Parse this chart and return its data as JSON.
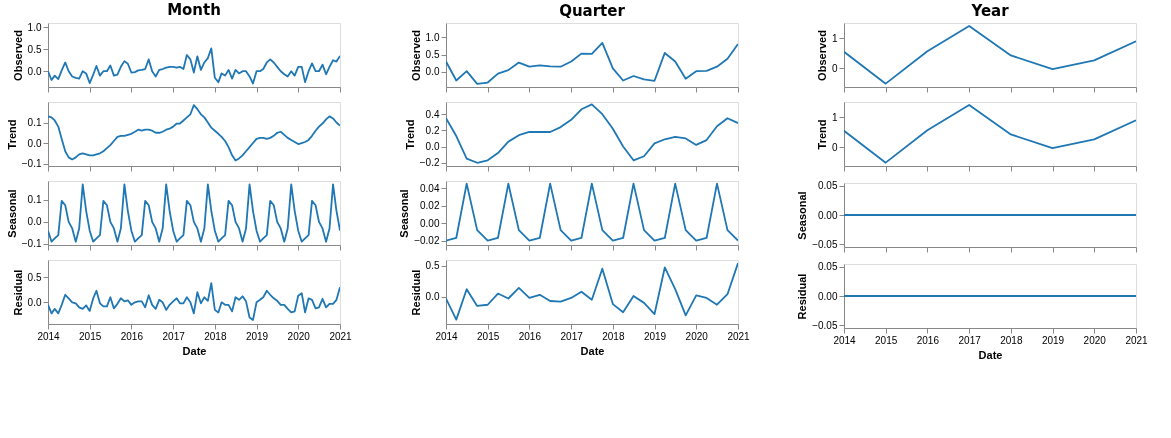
{
  "chart_data": [
    {
      "type": "line",
      "title": "Month",
      "ylabel": "Observed",
      "color": "#1f77b4",
      "tick_labels": "y",
      "x": [
        "2014-01",
        "2014-02",
        "2014-03",
        "2014-04",
        "2014-05",
        "2014-06",
        "2014-07",
        "2014-08",
        "2014-09",
        "2014-10",
        "2014-11",
        "2014-12",
        "2015-01",
        "2015-02",
        "2015-03",
        "2015-04",
        "2015-05",
        "2015-06",
        "2015-07",
        "2015-08",
        "2015-09",
        "2015-10",
        "2015-11",
        "2015-12",
        "2016-01",
        "2016-02",
        "2016-03",
        "2016-04",
        "2016-05",
        "2016-06",
        "2016-07",
        "2016-08",
        "2016-09",
        "2016-10",
        "2016-11",
        "2016-12",
        "2017-01",
        "2017-02",
        "2017-03",
        "2017-04",
        "2017-05",
        "2017-06",
        "2017-07",
        "2017-08",
        "2017-09",
        "2017-10",
        "2017-11",
        "2017-12",
        "2018-01",
        "2018-02",
        "2018-03",
        "2018-04",
        "2018-05",
        "2018-06",
        "2018-07",
        "2018-08",
        "2018-09",
        "2018-10",
        "2018-11",
        "2018-12",
        "2019-01",
        "2019-02",
        "2019-03",
        "2019-04",
        "2019-05",
        "2019-06",
        "2019-07",
        "2019-08",
        "2019-09",
        "2019-10",
        "2019-11",
        "2019-12",
        "2020-01",
        "2020-02",
        "2020-03",
        "2020-04",
        "2020-05",
        "2020-06",
        "2020-07",
        "2020-08",
        "2020-09",
        "2020-10",
        "2020-11",
        "2020-12",
        "2021-01"
      ],
      "values": [
        0.0,
        -0.2,
        -0.1,
        -0.18,
        0.02,
        0.2,
        0.0,
        -0.12,
        -0.15,
        -0.17,
        0.0,
        -0.05,
        -0.27,
        -0.08,
        0.12,
        -0.1,
        0.0,
        0.0,
        0.13,
        -0.1,
        -0.08,
        0.1,
        0.23,
        0.17,
        -0.03,
        -0.02,
        0.02,
        0.03,
        0.05,
        0.27,
        0.0,
        -0.12,
        0.03,
        0.05,
        0.08,
        0.1,
        0.1,
        0.08,
        0.1,
        0.05,
        0.37,
        0.27,
        -0.03,
        0.34,
        0.03,
        0.2,
        0.3,
        0.52,
        -0.15,
        -0.25,
        -0.05,
        -0.1,
        0.03,
        -0.17,
        0.03,
        -0.05,
        0.0,
        0.0,
        -0.12,
        -0.28,
        0.0,
        0.0,
        0.05,
        0.2,
        0.27,
        0.2,
        0.1,
        0.0,
        -0.07,
        -0.12,
        0.0,
        -0.1,
        0.1,
        0.1,
        -0.25,
        0.0,
        0.18,
        0.0,
        0.0,
        0.15,
        -0.07,
        0.1,
        0.25,
        0.22,
        0.35
      ],
      "xlim": [
        "2014-01",
        "2021-01"
      ],
      "xticks": [
        "2014",
        "2015",
        "2016",
        "2017",
        "2018",
        "2019",
        "2020",
        "2021"
      ],
      "ylim": [
        -0.36,
        1.1
      ],
      "yticks": [
        {
          "value": 0,
          "label": "0.0"
        },
        0.5,
        {
          "value": 1,
          "label": "1.0"
        }
      ]
    },
    {
      "type": "line",
      "title": "Quarter",
      "ylabel": "Observed",
      "color": "#1f77b4",
      "tick_labels": "y",
      "x": [
        "2014-01",
        "2014-04",
        "2014-07",
        "2014-10",
        "2015-01",
        "2015-04",
        "2015-07",
        "2015-10",
        "2016-01",
        "2016-04",
        "2016-07",
        "2016-10",
        "2017-01",
        "2017-04",
        "2017-07",
        "2017-10",
        "2018-01",
        "2018-04",
        "2018-07",
        "2018-10",
        "2019-01",
        "2019-04",
        "2019-07",
        "2019-10",
        "2020-01",
        "2020-04",
        "2020-07",
        "2020-10",
        "2021-01"
      ],
      "values": [
        0.3,
        -0.25,
        0.02,
        -0.35,
        -0.31,
        -0.05,
        0.05,
        0.27,
        0.15,
        0.19,
        0.16,
        0.15,
        0.3,
        0.53,
        0.52,
        0.84,
        0.1,
        -0.25,
        -0.12,
        -0.22,
        -0.26,
        0.55,
        0.3,
        -0.2,
        0.02,
        0.03,
        0.15,
        0.38,
        0.81
      ],
      "xlim": [
        "2014-01",
        "2021-01"
      ],
      "xticks": [
        "2014",
        "2015",
        "2016",
        "2017",
        "2018",
        "2019",
        "2020",
        "2021"
      ],
      "ylim": [
        -0.44,
        1.42
      ],
      "yticks": [
        {
          "value": 0,
          "label": "0.0"
        },
        0.5,
        {
          "value": 1,
          "label": "1.0"
        }
      ]
    },
    {
      "type": "line",
      "title": "Year",
      "ylabel": "Observed",
      "color": "#1f77b4",
      "tick_labels": "y",
      "x": [
        "2014",
        "2015",
        "2016",
        "2017",
        "2018",
        "2019",
        "2020",
        "2021"
      ],
      "values": [
        0.55,
        -0.5,
        0.57,
        1.4,
        0.43,
        -0.02,
        0.27,
        0.9
      ],
      "xlim": [
        "2014",
        "2021"
      ],
      "xticks": [
        "2014",
        "2015",
        "2016",
        "2017",
        "2018",
        "2019",
        "2020",
        "2021"
      ],
      "ylim": [
        -0.61,
        1.5
      ],
      "yticks": [
        0,
        1
      ]
    },
    {
      "type": "line",
      "ylabel": "Trend",
      "color": "#1f77b4",
      "tick_labels": "y",
      "x": [
        "2014-01",
        "2014-02",
        "2014-03",
        "2014-04",
        "2014-05",
        "2014-06",
        "2014-07",
        "2014-08",
        "2014-09",
        "2014-10",
        "2014-11",
        "2014-12",
        "2015-01",
        "2015-02",
        "2015-03",
        "2015-04",
        "2015-05",
        "2015-06",
        "2015-07",
        "2015-08",
        "2015-09",
        "2015-10",
        "2015-11",
        "2015-12",
        "2016-01",
        "2016-02",
        "2016-03",
        "2016-04",
        "2016-05",
        "2016-06",
        "2016-07",
        "2016-08",
        "2016-09",
        "2016-10",
        "2016-11",
        "2016-12",
        "2017-01",
        "2017-02",
        "2017-03",
        "2017-04",
        "2017-05",
        "2017-06",
        "2017-07",
        "2017-08",
        "2017-09",
        "2017-10",
        "2017-11",
        "2017-12",
        "2018-01",
        "2018-02",
        "2018-03",
        "2018-04",
        "2018-05",
        "2018-06",
        "2018-07",
        "2018-08",
        "2018-09",
        "2018-10",
        "2018-11",
        "2018-12",
        "2019-01",
        "2019-02",
        "2019-03",
        "2019-04",
        "2019-05",
        "2019-06",
        "2019-07",
        "2019-08",
        "2019-09",
        "2019-10",
        "2019-11",
        "2019-12",
        "2020-01",
        "2020-02",
        "2020-03",
        "2020-04",
        "2020-05",
        "2020-06",
        "2020-07",
        "2020-08",
        "2020-09",
        "2020-10",
        "2020-11",
        "2020-12",
        "2021-01"
      ],
      "values": [
        0.13,
        0.125,
        0.11,
        0.08,
        0.02,
        -0.04,
        -0.07,
        -0.08,
        -0.07,
        -0.055,
        -0.05,
        -0.055,
        -0.06,
        -0.06,
        -0.055,
        -0.05,
        -0.04,
        -0.025,
        -0.01,
        0.01,
        0.03,
        0.035,
        0.035,
        0.04,
        0.045,
        0.055,
        0.065,
        0.06,
        0.065,
        0.065,
        0.06,
        0.05,
        0.05,
        0.055,
        0.065,
        0.07,
        0.08,
        0.095,
        0.095,
        0.11,
        0.125,
        0.14,
        0.185,
        0.165,
        0.14,
        0.125,
        0.1,
        0.075,
        0.06,
        0.045,
        0.03,
        0.01,
        -0.02,
        -0.06,
        -0.085,
        -0.075,
        -0.06,
        -0.04,
        -0.02,
        0.0,
        0.02,
        0.025,
        0.025,
        0.02,
        0.025,
        0.035,
        0.05,
        0.055,
        0.04,
        0.025,
        0.015,
        0.005,
        -0.005,
        0.0,
        0.005,
        0.015,
        0.035,
        0.06,
        0.08,
        0.095,
        0.115,
        0.13,
        0.12,
        0.1,
        0.085
      ],
      "xlim": [
        "2014-01",
        "2021-01"
      ],
      "xticks": [
        "2014",
        "2015",
        "2016",
        "2017",
        "2018",
        "2019",
        "2020",
        "2021"
      ],
      "ylim": [
        -0.112,
        0.2
      ],
      "yticks": [
        {
          "value": -0.1,
          "label": "−0.1"
        },
        {
          "value": 0,
          "label": "0.0"
        },
        0.1
      ]
    },
    {
      "type": "line",
      "ylabel": "Trend",
      "color": "#1f77b4",
      "tick_labels": "y",
      "x": [
        "2014-01",
        "2014-04",
        "2014-07",
        "2014-10",
        "2015-01",
        "2015-04",
        "2015-07",
        "2015-10",
        "2016-01",
        "2016-04",
        "2016-07",
        "2016-10",
        "2017-01",
        "2017-04",
        "2017-07",
        "2017-10",
        "2018-01",
        "2018-04",
        "2018-07",
        "2018-10",
        "2019-01",
        "2019-04",
        "2019-07",
        "2019-10",
        "2020-01",
        "2020-04",
        "2020-07",
        "2020-10",
        "2021-01"
      ],
      "values": [
        0.35,
        0.13,
        -0.15,
        -0.2,
        -0.17,
        -0.08,
        0.06,
        0.14,
        0.18,
        0.18,
        0.18,
        0.24,
        0.33,
        0.46,
        0.52,
        0.4,
        0.22,
        0.0,
        -0.17,
        -0.12,
        0.04,
        0.09,
        0.12,
        0.1,
        0.02,
        0.08,
        0.25,
        0.35,
        0.29
      ],
      "xlim": [
        "2014-01",
        "2021-01"
      ],
      "xticks": [
        "2014",
        "2015",
        "2016",
        "2017",
        "2018",
        "2019",
        "2020",
        "2021"
      ],
      "ylim": [
        -0.24,
        0.55
      ],
      "yticks": [
        {
          "value": -0.2,
          "label": "−0.2"
        },
        {
          "value": 0,
          "label": "0.0"
        },
        0.2,
        0.4
      ]
    },
    {
      "type": "line",
      "ylabel": "Trend",
      "color": "#1f77b4",
      "tick_labels": "y",
      "x": [
        "2014",
        "2015",
        "2016",
        "2017",
        "2018",
        "2019",
        "2020",
        "2021"
      ],
      "values": [
        0.55,
        -0.5,
        0.57,
        1.4,
        0.43,
        -0.02,
        0.27,
        0.9
      ],
      "xlim": [
        "2014",
        "2021"
      ],
      "xticks": [
        "2014",
        "2015",
        "2016",
        "2017",
        "2018",
        "2019",
        "2020",
        "2021"
      ],
      "ylim": [
        -0.61,
        1.5
      ],
      "yticks": [
        0,
        1
      ]
    },
    {
      "type": "line",
      "ylabel": "Seasonal",
      "color": "#1f77b4",
      "tick_labels": "y",
      "x": [
        "2014-01",
        "2014-02",
        "2014-03",
        "2014-04",
        "2014-05",
        "2014-06",
        "2014-07",
        "2014-08",
        "2014-09",
        "2014-10",
        "2014-11",
        "2014-12",
        "2015-01",
        "2015-02",
        "2015-03",
        "2015-04",
        "2015-05",
        "2015-06",
        "2015-07",
        "2015-08",
        "2015-09",
        "2015-10",
        "2015-11",
        "2015-12",
        "2016-01",
        "2016-02",
        "2016-03",
        "2016-04",
        "2016-05",
        "2016-06",
        "2016-07",
        "2016-08",
        "2016-09",
        "2016-10",
        "2016-11",
        "2016-12",
        "2017-01",
        "2017-02",
        "2017-03",
        "2017-04",
        "2017-05",
        "2017-06",
        "2017-07",
        "2017-08",
        "2017-09",
        "2017-10",
        "2017-11",
        "2017-12",
        "2018-01",
        "2018-02",
        "2018-03",
        "2018-04",
        "2018-05",
        "2018-06",
        "2018-07",
        "2018-08",
        "2018-09",
        "2018-10",
        "2018-11",
        "2018-12",
        "2019-01",
        "2019-02",
        "2019-03",
        "2019-04",
        "2019-05",
        "2019-06",
        "2019-07",
        "2019-08",
        "2019-09",
        "2019-10",
        "2019-11",
        "2019-12",
        "2020-01",
        "2020-02",
        "2020-03",
        "2020-04",
        "2020-05",
        "2020-06",
        "2020-07",
        "2020-08",
        "2020-09",
        "2020-10",
        "2020-11",
        "2020-12",
        "2021-01"
      ],
      "values": [
        -0.04,
        -0.09,
        -0.075,
        -0.06,
        0.095,
        0.075,
        0.0,
        -0.03,
        -0.09,
        -0.03,
        0.17,
        0.05,
        -0.04,
        -0.09,
        -0.075,
        -0.06,
        0.095,
        0.075,
        0.0,
        -0.03,
        -0.09,
        -0.03,
        0.17,
        0.05,
        -0.04,
        -0.09,
        -0.075,
        -0.06,
        0.095,
        0.075,
        0.0,
        -0.03,
        -0.09,
        -0.03,
        0.17,
        0.05,
        -0.04,
        -0.09,
        -0.075,
        -0.06,
        0.095,
        0.075,
        0.0,
        -0.03,
        -0.09,
        -0.03,
        0.17,
        0.05,
        -0.04,
        -0.09,
        -0.075,
        -0.06,
        0.095,
        0.075,
        0.0,
        -0.03,
        -0.09,
        -0.03,
        0.17,
        0.05,
        -0.04,
        -0.09,
        -0.075,
        -0.06,
        0.095,
        0.075,
        0.0,
        -0.03,
        -0.09,
        -0.03,
        0.17,
        0.05,
        -0.04,
        -0.09,
        -0.075,
        -0.06,
        0.095,
        0.075,
        0.0,
        -0.03,
        -0.09,
        -0.03,
        0.17,
        0.05,
        -0.04
      ],
      "xlim": [
        "2014-01",
        "2021-01"
      ],
      "xticks": [
        "2014",
        "2015",
        "2016",
        "2017",
        "2018",
        "2019",
        "2020",
        "2021"
      ],
      "ylim": [
        -0.105,
        0.185
      ],
      "yticks": [
        {
          "value": -0.1,
          "label": "−0.1"
        },
        {
          "value": 0,
          "label": "0.0"
        },
        0.1
      ]
    },
    {
      "type": "line",
      "ylabel": "Seasonal",
      "color": "#1f77b4",
      "tick_labels": "y",
      "x": [
        "2014-01",
        "2014-04",
        "2014-07",
        "2014-10",
        "2015-01",
        "2015-04",
        "2015-07",
        "2015-10",
        "2016-01",
        "2016-04",
        "2016-07",
        "2016-10",
        "2017-01",
        "2017-04",
        "2017-07",
        "2017-10",
        "2018-01",
        "2018-04",
        "2018-07",
        "2018-10",
        "2019-01",
        "2019-04",
        "2019-07",
        "2019-10",
        "2020-01",
        "2020-04",
        "2020-07",
        "2020-10",
        "2021-01"
      ],
      "values": [
        -0.02,
        -0.017,
        0.045,
        -0.008,
        -0.02,
        -0.017,
        0.045,
        -0.008,
        -0.02,
        -0.017,
        0.045,
        -0.008,
        -0.02,
        -0.017,
        0.045,
        -0.008,
        -0.02,
        -0.017,
        0.045,
        -0.008,
        -0.02,
        -0.017,
        0.045,
        -0.008,
        -0.02,
        -0.017,
        0.045,
        -0.008,
        -0.02
      ],
      "xlim": [
        "2014-01",
        "2021-01"
      ],
      "xticks": [
        "2014",
        "2015",
        "2016",
        "2017",
        "2018",
        "2019",
        "2020",
        "2021"
      ],
      "ylim": [
        -0.025,
        0.048
      ],
      "yticks": [
        {
          "value": -0.02,
          "label": "−0.02"
        },
        {
          "value": 0,
          "label": "0.00"
        },
        0.02,
        0.04
      ]
    },
    {
      "type": "line",
      "ylabel": "Seasonal",
      "color": "#1f77b4",
      "tick_labels": "y",
      "x": [
        "2014",
        "2015",
        "2016",
        "2017",
        "2018",
        "2019",
        "2020",
        "2021"
      ],
      "values": [
        0,
        0,
        0,
        0,
        0,
        0,
        0,
        0
      ],
      "xlim": [
        "2014",
        "2021"
      ],
      "xticks": [
        "2014",
        "2015",
        "2016",
        "2017",
        "2018",
        "2019",
        "2020",
        "2021"
      ],
      "ylim": [
        -0.055,
        0.055
      ],
      "yticks": [
        {
          "value": -0.05,
          "label": "−0.05"
        },
        {
          "value": 0,
          "label": "0.00"
        },
        0.05
      ]
    },
    {
      "type": "line",
      "ylabel": "Residual",
      "xlabel": "Date",
      "color": "#1f77b4",
      "x": [
        "2014-01",
        "2014-02",
        "2014-03",
        "2014-04",
        "2014-05",
        "2014-06",
        "2014-07",
        "2014-08",
        "2014-09",
        "2014-10",
        "2014-11",
        "2014-12",
        "2015-01",
        "2015-02",
        "2015-03",
        "2015-04",
        "2015-05",
        "2015-06",
        "2015-07",
        "2015-08",
        "2015-09",
        "2015-10",
        "2015-11",
        "2015-12",
        "2016-01",
        "2016-02",
        "2016-03",
        "2016-04",
        "2016-05",
        "2016-06",
        "2016-07",
        "2016-08",
        "2016-09",
        "2016-10",
        "2016-11",
        "2016-12",
        "2017-01",
        "2017-02",
        "2017-03",
        "2017-04",
        "2017-05",
        "2017-06",
        "2017-07",
        "2017-08",
        "2017-09",
        "2017-10",
        "2017-11",
        "2017-12",
        "2018-01",
        "2018-02",
        "2018-03",
        "2018-04",
        "2018-05",
        "2018-06",
        "2018-07",
        "2018-08",
        "2018-09",
        "2018-10",
        "2018-11",
        "2018-12",
        "2019-01",
        "2019-02",
        "2019-03",
        "2019-04",
        "2019-05",
        "2019-06",
        "2019-07",
        "2019-08",
        "2019-09",
        "2019-10",
        "2019-11",
        "2019-12",
        "2020-01",
        "2020-02",
        "2020-03",
        "2020-04",
        "2020-05",
        "2020-06",
        "2020-07",
        "2020-08",
        "2020-09",
        "2020-10",
        "2020-11",
        "2020-12",
        "2021-01"
      ],
      "values": [
        -0.05,
        -0.22,
        -0.13,
        -0.22,
        -0.05,
        0.15,
        0.08,
        0.0,
        -0.02,
        -0.1,
        -0.13,
        -0.06,
        -0.17,
        0.08,
        0.23,
        -0.02,
        -0.08,
        -0.08,
        0.1,
        -0.12,
        -0.03,
        0.08,
        0.02,
        0.04,
        -0.05,
        0.0,
        0.02,
        0.02,
        -0.1,
        0.14,
        -0.05,
        -0.13,
        0.05,
        0.0,
        -0.15,
        -0.05,
        0.02,
        0.08,
        -0.02,
        -0.02,
        0.1,
        0.0,
        -0.22,
        0.2,
        -0.02,
        0.1,
        0.03,
        0.38,
        -0.15,
        -0.2,
        0.0,
        -0.05,
        -0.05,
        -0.18,
        0.1,
        0.05,
        0.12,
        0.02,
        -0.3,
        -0.35,
        0.0,
        0.05,
        0.1,
        0.23,
        0.15,
        0.08,
        0.03,
        -0.05,
        -0.05,
        -0.13,
        -0.2,
        -0.18,
        0.13,
        0.18,
        -0.2,
        0.08,
        0.05,
        -0.12,
        -0.1,
        0.07,
        -0.1,
        -0.03,
        -0.03,
        0.05,
        0.3
      ],
      "xlim": [
        "2014-01",
        "2021-01"
      ],
      "xticks": [
        "2014",
        "2015",
        "2016",
        "2017",
        "2018",
        "2019",
        "2020",
        "2021"
      ],
      "ylim": [
        -0.43,
        0.84
      ],
      "yticks": [
        {
          "value": 0,
          "label": "0.0"
        },
        0.5
      ]
    },
    {
      "type": "line",
      "ylabel": "Residual",
      "xlabel": "Date",
      "color": "#1f77b4",
      "x": [
        "2014-01",
        "2014-04",
        "2014-07",
        "2014-10",
        "2015-01",
        "2015-04",
        "2015-07",
        "2015-10",
        "2016-01",
        "2016-04",
        "2016-07",
        "2016-10",
        "2017-01",
        "2017-04",
        "2017-07",
        "2017-10",
        "2018-01",
        "2018-04",
        "2018-07",
        "2018-10",
        "2019-01",
        "2019-04",
        "2019-07",
        "2019-10",
        "2020-01",
        "2020-04",
        "2020-07",
        "2020-10",
        "2021-01"
      ],
      "values": [
        -0.03,
        -0.37,
        0.12,
        -0.15,
        -0.13,
        0.05,
        -0.03,
        0.14,
        -0.02,
        0.03,
        -0.07,
        -0.08,
        -0.02,
        0.08,
        -0.05,
        0.45,
        -0.12,
        -0.25,
        0.01,
        -0.1,
        -0.28,
        0.47,
        0.12,
        -0.3,
        0.02,
        -0.02,
        -0.13,
        0.04,
        0.54
      ],
      "xlim": [
        "2014-01",
        "2021-01"
      ],
      "xticks": [
        "2014",
        "2015",
        "2016",
        "2017",
        "2018",
        "2019",
        "2020",
        "2021"
      ],
      "ylim": [
        -0.44,
        0.59
      ],
      "yticks": [
        {
          "value": 0,
          "label": "0.0"
        },
        0.5
      ]
    },
    {
      "type": "line",
      "ylabel": "Residual",
      "xlabel": "Date",
      "color": "#1f77b4",
      "x": [
        "2014",
        "2015",
        "2016",
        "2017",
        "2018",
        "2019",
        "2020",
        "2021"
      ],
      "values": [
        0,
        0,
        0,
        0,
        0,
        0,
        0,
        0
      ],
      "xlim": [
        "2014",
        "2021"
      ],
      "xticks": [
        "2014",
        "2015",
        "2016",
        "2017",
        "2018",
        "2019",
        "2020",
        "2021"
      ],
      "ylim": [
        -0.055,
        0.055
      ],
      "yticks": [
        {
          "value": -0.05,
          "label": "−0.05"
        },
        {
          "value": 0,
          "label": "0.00"
        },
        0.05
      ]
    }
  ]
}
